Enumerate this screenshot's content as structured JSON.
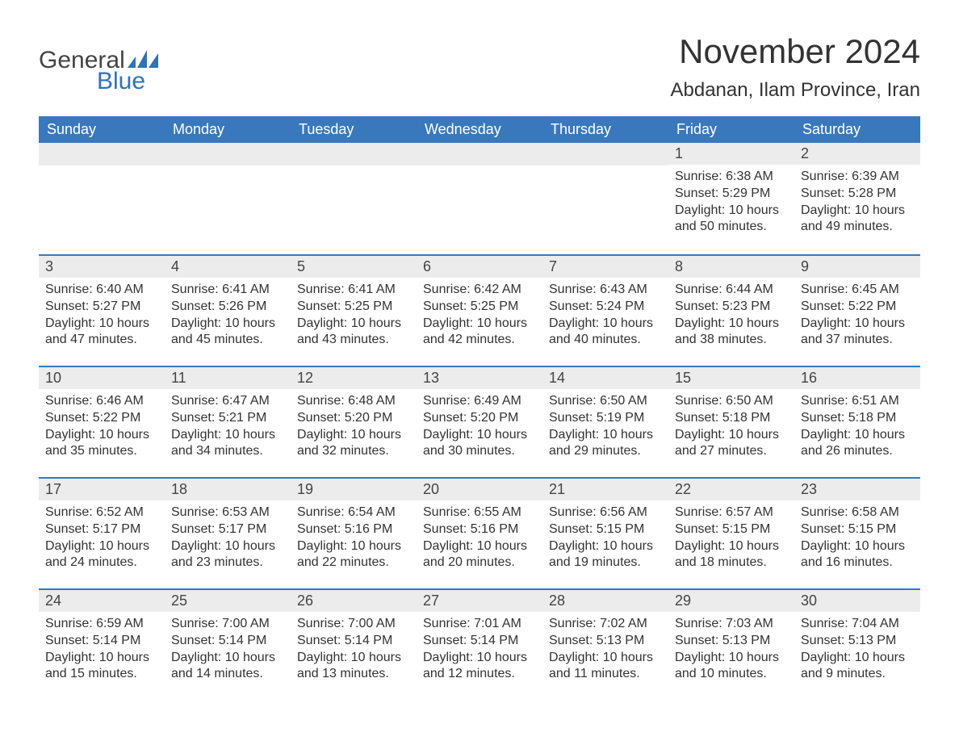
{
  "logo": {
    "text1": "General",
    "text2": "Blue",
    "icon_color": "#2f72b9"
  },
  "title": "November 2024",
  "location": "Abdanan, Ilam Province, Iran",
  "colors": {
    "header_bg": "#3a78bd",
    "header_text": "#ffffff",
    "daynum_bg": "#ececec",
    "border": "#3a78bd",
    "body_text": "#333333"
  },
  "font": {
    "family": "Arial",
    "title_size": 42,
    "location_size": 24,
    "header_size": 18,
    "daynum_size": 18,
    "body_size": 16
  },
  "day_labels": [
    "Sunday",
    "Monday",
    "Tuesday",
    "Wednesday",
    "Thursday",
    "Friday",
    "Saturday"
  ],
  "weeks": [
    [
      null,
      null,
      null,
      null,
      null,
      {
        "d": "1",
        "sr": "Sunrise: 6:38 AM",
        "ss": "Sunset: 5:29 PM",
        "dl1": "Daylight: 10 hours",
        "dl2": "and 50 minutes."
      },
      {
        "d": "2",
        "sr": "Sunrise: 6:39 AM",
        "ss": "Sunset: 5:28 PM",
        "dl1": "Daylight: 10 hours",
        "dl2": "and 49 minutes."
      }
    ],
    [
      {
        "d": "3",
        "sr": "Sunrise: 6:40 AM",
        "ss": "Sunset: 5:27 PM",
        "dl1": "Daylight: 10 hours",
        "dl2": "and 47 minutes."
      },
      {
        "d": "4",
        "sr": "Sunrise: 6:41 AM",
        "ss": "Sunset: 5:26 PM",
        "dl1": "Daylight: 10 hours",
        "dl2": "and 45 minutes."
      },
      {
        "d": "5",
        "sr": "Sunrise: 6:41 AM",
        "ss": "Sunset: 5:25 PM",
        "dl1": "Daylight: 10 hours",
        "dl2": "and 43 minutes."
      },
      {
        "d": "6",
        "sr": "Sunrise: 6:42 AM",
        "ss": "Sunset: 5:25 PM",
        "dl1": "Daylight: 10 hours",
        "dl2": "and 42 minutes."
      },
      {
        "d": "7",
        "sr": "Sunrise: 6:43 AM",
        "ss": "Sunset: 5:24 PM",
        "dl1": "Daylight: 10 hours",
        "dl2": "and 40 minutes."
      },
      {
        "d": "8",
        "sr": "Sunrise: 6:44 AM",
        "ss": "Sunset: 5:23 PM",
        "dl1": "Daylight: 10 hours",
        "dl2": "and 38 minutes."
      },
      {
        "d": "9",
        "sr": "Sunrise: 6:45 AM",
        "ss": "Sunset: 5:22 PM",
        "dl1": "Daylight: 10 hours",
        "dl2": "and 37 minutes."
      }
    ],
    [
      {
        "d": "10",
        "sr": "Sunrise: 6:46 AM",
        "ss": "Sunset: 5:22 PM",
        "dl1": "Daylight: 10 hours",
        "dl2": "and 35 minutes."
      },
      {
        "d": "11",
        "sr": "Sunrise: 6:47 AM",
        "ss": "Sunset: 5:21 PM",
        "dl1": "Daylight: 10 hours",
        "dl2": "and 34 minutes."
      },
      {
        "d": "12",
        "sr": "Sunrise: 6:48 AM",
        "ss": "Sunset: 5:20 PM",
        "dl1": "Daylight: 10 hours",
        "dl2": "and 32 minutes."
      },
      {
        "d": "13",
        "sr": "Sunrise: 6:49 AM",
        "ss": "Sunset: 5:20 PM",
        "dl1": "Daylight: 10 hours",
        "dl2": "and 30 minutes."
      },
      {
        "d": "14",
        "sr": "Sunrise: 6:50 AM",
        "ss": "Sunset: 5:19 PM",
        "dl1": "Daylight: 10 hours",
        "dl2": "and 29 minutes."
      },
      {
        "d": "15",
        "sr": "Sunrise: 6:50 AM",
        "ss": "Sunset: 5:18 PM",
        "dl1": "Daylight: 10 hours",
        "dl2": "and 27 minutes."
      },
      {
        "d": "16",
        "sr": "Sunrise: 6:51 AM",
        "ss": "Sunset: 5:18 PM",
        "dl1": "Daylight: 10 hours",
        "dl2": "and 26 minutes."
      }
    ],
    [
      {
        "d": "17",
        "sr": "Sunrise: 6:52 AM",
        "ss": "Sunset: 5:17 PM",
        "dl1": "Daylight: 10 hours",
        "dl2": "and 24 minutes."
      },
      {
        "d": "18",
        "sr": "Sunrise: 6:53 AM",
        "ss": "Sunset: 5:17 PM",
        "dl1": "Daylight: 10 hours",
        "dl2": "and 23 minutes."
      },
      {
        "d": "19",
        "sr": "Sunrise: 6:54 AM",
        "ss": "Sunset: 5:16 PM",
        "dl1": "Daylight: 10 hours",
        "dl2": "and 22 minutes."
      },
      {
        "d": "20",
        "sr": "Sunrise: 6:55 AM",
        "ss": "Sunset: 5:16 PM",
        "dl1": "Daylight: 10 hours",
        "dl2": "and 20 minutes."
      },
      {
        "d": "21",
        "sr": "Sunrise: 6:56 AM",
        "ss": "Sunset: 5:15 PM",
        "dl1": "Daylight: 10 hours",
        "dl2": "and 19 minutes."
      },
      {
        "d": "22",
        "sr": "Sunrise: 6:57 AM",
        "ss": "Sunset: 5:15 PM",
        "dl1": "Daylight: 10 hours",
        "dl2": "and 18 minutes."
      },
      {
        "d": "23",
        "sr": "Sunrise: 6:58 AM",
        "ss": "Sunset: 5:15 PM",
        "dl1": "Daylight: 10 hours",
        "dl2": "and 16 minutes."
      }
    ],
    [
      {
        "d": "24",
        "sr": "Sunrise: 6:59 AM",
        "ss": "Sunset: 5:14 PM",
        "dl1": "Daylight: 10 hours",
        "dl2": "and 15 minutes."
      },
      {
        "d": "25",
        "sr": "Sunrise: 7:00 AM",
        "ss": "Sunset: 5:14 PM",
        "dl1": "Daylight: 10 hours",
        "dl2": "and 14 minutes."
      },
      {
        "d": "26",
        "sr": "Sunrise: 7:00 AM",
        "ss": "Sunset: 5:14 PM",
        "dl1": "Daylight: 10 hours",
        "dl2": "and 13 minutes."
      },
      {
        "d": "27",
        "sr": "Sunrise: 7:01 AM",
        "ss": "Sunset: 5:14 PM",
        "dl1": "Daylight: 10 hours",
        "dl2": "and 12 minutes."
      },
      {
        "d": "28",
        "sr": "Sunrise: 7:02 AM",
        "ss": "Sunset: 5:13 PM",
        "dl1": "Daylight: 10 hours",
        "dl2": "and 11 minutes."
      },
      {
        "d": "29",
        "sr": "Sunrise: 7:03 AM",
        "ss": "Sunset: 5:13 PM",
        "dl1": "Daylight: 10 hours",
        "dl2": "and 10 minutes."
      },
      {
        "d": "30",
        "sr": "Sunrise: 7:04 AM",
        "ss": "Sunset: 5:13 PM",
        "dl1": "Daylight: 10 hours",
        "dl2": "and 9 minutes."
      }
    ]
  ]
}
